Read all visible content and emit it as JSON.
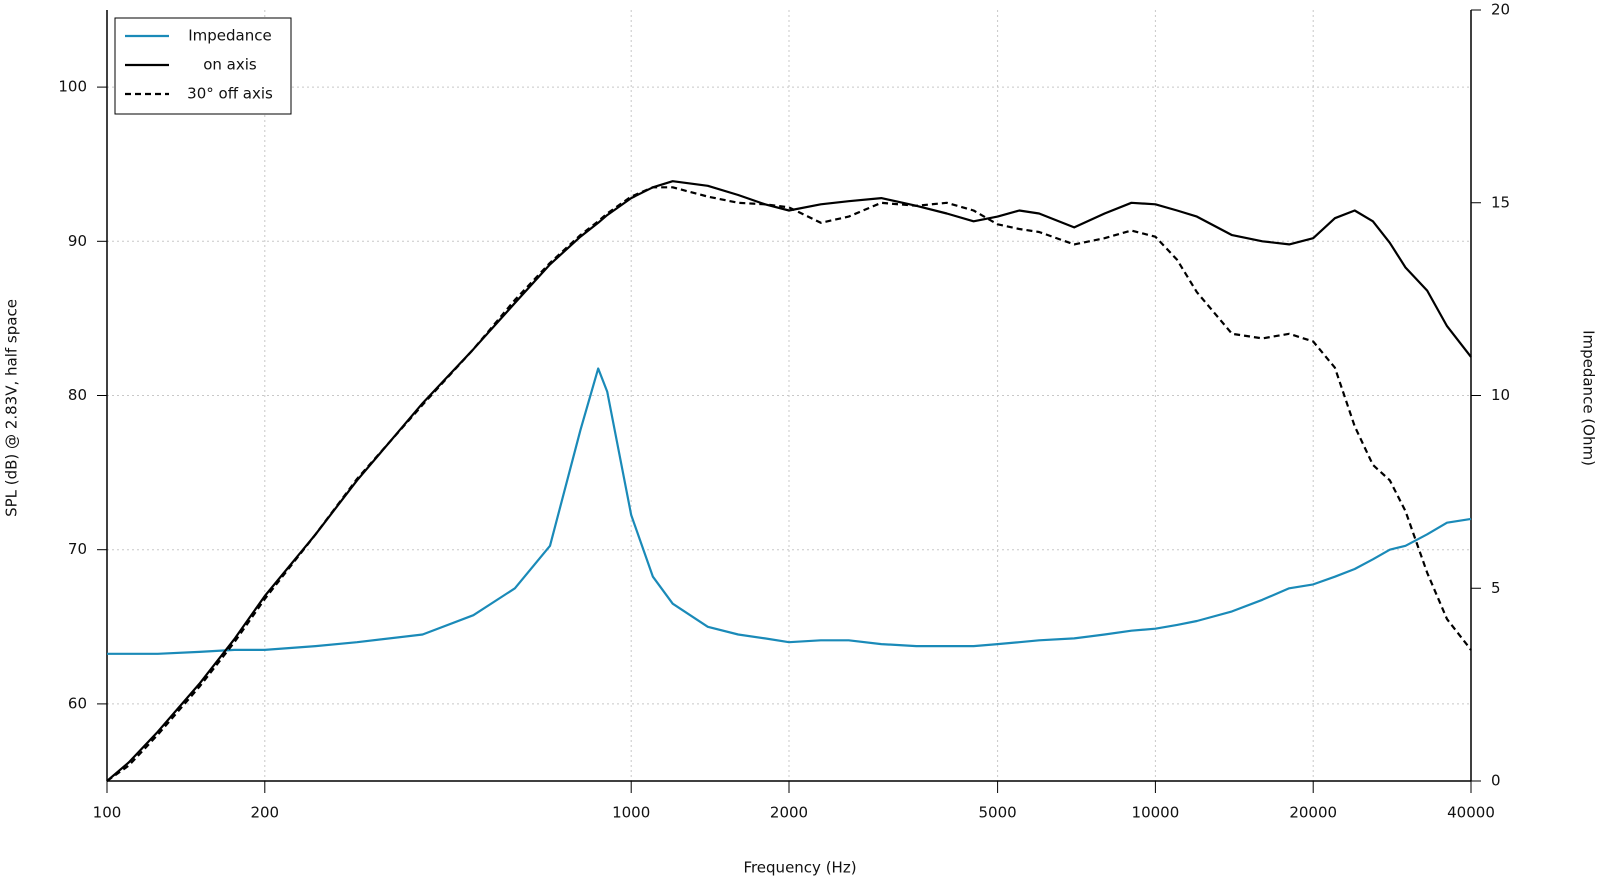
{
  "chart_data": {
    "type": "line",
    "xlabel": "Frequency (Hz)",
    "ylabel": "SPL (dB) @ 2.83V, half space",
    "y2label": "Impedance (Ohm)",
    "xscale": "log",
    "xlim": [
      100,
      40000
    ],
    "xticks": [
      100,
      200,
      1000,
      2000,
      5000,
      10000,
      20000,
      40000
    ],
    "ylim": [
      55,
      105
    ],
    "yticks": [
      60,
      70,
      80,
      90,
      100
    ],
    "y2lim": [
      0,
      20
    ],
    "y2ticks": [
      0,
      5,
      10,
      15,
      20
    ],
    "grid": true,
    "legend": "upper left",
    "x": [
      100,
      110,
      125,
      150,
      175,
      200,
      250,
      300,
      400,
      500,
      600,
      700,
      800,
      865,
      900,
      1000,
      1100,
      1200,
      1400,
      1600,
      1800,
      2000,
      2300,
      2600,
      3000,
      3500,
      4000,
      4500,
      5000,
      5500,
      6000,
      7000,
      8000,
      9000,
      10000,
      11000,
      12000,
      14000,
      16000,
      18000,
      20000,
      22000,
      24000,
      26000,
      28000,
      30000,
      33000,
      36000,
      40000
    ],
    "series": [
      {
        "name": "Impedance",
        "color": "#1a8ab8",
        "axis": "y2",
        "dashed": false,
        "values": [
          3.3,
          3.3,
          3.3,
          3.35,
          3.4,
          3.4,
          3.5,
          3.6,
          3.8,
          4.3,
          5.0,
          6.1,
          9.1,
          10.7,
          10.1,
          6.9,
          5.3,
          4.6,
          4.0,
          3.8,
          3.7,
          3.6,
          3.65,
          3.65,
          3.55,
          3.5,
          3.5,
          3.5,
          3.55,
          3.6,
          3.65,
          3.7,
          3.8,
          3.9,
          3.95,
          4.05,
          4.15,
          4.4,
          4.7,
          5.0,
          5.1,
          5.3,
          5.5,
          5.75,
          6.0,
          6.1,
          6.4,
          6.7,
          6.8
        ]
      },
      {
        "name": "on axis",
        "color": "#000000",
        "dashed": false,
        "values": [
          55,
          56.2,
          58.2,
          61.3,
          64.2,
          67.0,
          71.0,
          74.5,
          79.5,
          83.0,
          86.0,
          88.5,
          90.3,
          91.2,
          91.7,
          92.8,
          93.5,
          93.9,
          93.6,
          93.0,
          92.4,
          92.0,
          92.4,
          92.6,
          92.8,
          92.3,
          91.8,
          91.3,
          91.6,
          92.0,
          91.8,
          90.9,
          91.8,
          92.5,
          92.4,
          92.0,
          91.6,
          90.4,
          90.0,
          89.8,
          90.2,
          91.5,
          92.0,
          91.3,
          89.9,
          88.3,
          86.8,
          84.5,
          82.5
        ]
      },
      {
        "name": "30° off axis",
        "color": "#000000",
        "dashed": true,
        "values": [
          55,
          56.0,
          58.0,
          61.1,
          64.0,
          66.8,
          71.0,
          74.6,
          79.4,
          83.0,
          86.2,
          88.6,
          90.4,
          91.3,
          91.8,
          92.9,
          93.5,
          93.5,
          92.9,
          92.5,
          92.4,
          92.2,
          91.2,
          91.6,
          92.5,
          92.3,
          92.5,
          92.0,
          91.1,
          90.8,
          90.6,
          89.8,
          90.2,
          90.7,
          90.3,
          88.8,
          86.7,
          84.0,
          83.7,
          84.0,
          83.5,
          81.8,
          78.0,
          75.5,
          74.5,
          72.5,
          68.5,
          65.5,
          63.5
        ]
      }
    ]
  }
}
